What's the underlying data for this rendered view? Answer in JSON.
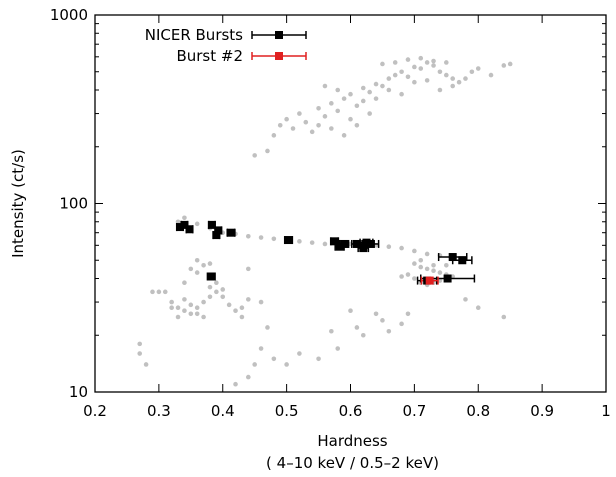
{
  "chart_data": {
    "type": "scatter",
    "title": "",
    "xlabel": "Hardness",
    "xlabel_sub": "( 4–10 keV / 0.5–2 keV)",
    "ylabel": "Intensity (ct/s)",
    "xlim": [
      0.2,
      1.0
    ],
    "ylim": [
      10,
      1000
    ],
    "yscale": "log",
    "grid": false,
    "legend_position": "top-left",
    "x_ticks": [
      0.2,
      0.3,
      0.4,
      0.5,
      0.6,
      0.7,
      0.8,
      0.9,
      1.0
    ],
    "x_tick_labels": [
      "0.2",
      "0.3",
      "0.4",
      "0.5",
      "0.6",
      "0.7",
      "0.8",
      "0.9",
      "1"
    ],
    "y_ticks": [
      10,
      100,
      1000
    ],
    "y_tick_labels": [
      "10",
      "100",
      "1000"
    ],
    "colors": {
      "background": "#c0c0c0",
      "nicer": "#000000",
      "burst2": "#e02020"
    },
    "series": [
      {
        "name": "",
        "role": "background",
        "points": [
          [
            0.45,
            180
          ],
          [
            0.47,
            190
          ],
          [
            0.48,
            230
          ],
          [
            0.49,
            260
          ],
          [
            0.5,
            280
          ],
          [
            0.51,
            250
          ],
          [
            0.52,
            300
          ],
          [
            0.53,
            270
          ],
          [
            0.54,
            240
          ],
          [
            0.55,
            320
          ],
          [
            0.56,
            290
          ],
          [
            0.57,
            340
          ],
          [
            0.58,
            310
          ],
          [
            0.59,
            360
          ],
          [
            0.6,
            380
          ],
          [
            0.61,
            330
          ],
          [
            0.62,
            410
          ],
          [
            0.63,
            390
          ],
          [
            0.64,
            430
          ],
          [
            0.65,
            420
          ],
          [
            0.66,
            460
          ],
          [
            0.67,
            480
          ],
          [
            0.68,
            500
          ],
          [
            0.69,
            470
          ],
          [
            0.7,
            530
          ],
          [
            0.71,
            520
          ],
          [
            0.72,
            560
          ],
          [
            0.73,
            540
          ],
          [
            0.74,
            500
          ],
          [
            0.75,
            480
          ],
          [
            0.76,
            460
          ],
          [
            0.77,
            440
          ],
          [
            0.78,
            460
          ],
          [
            0.79,
            500
          ],
          [
            0.8,
            520
          ],
          [
            0.82,
            480
          ],
          [
            0.84,
            540
          ],
          [
            0.85,
            550
          ],
          [
            0.55,
            260
          ],
          [
            0.57,
            250
          ],
          [
            0.59,
            230
          ],
          [
            0.6,
            280
          ],
          [
            0.62,
            350
          ],
          [
            0.64,
            360
          ],
          [
            0.66,
            400
          ],
          [
            0.68,
            380
          ],
          [
            0.7,
            440
          ],
          [
            0.72,
            450
          ],
          [
            0.74,
            400
          ],
          [
            0.76,
            420
          ],
          [
            0.63,
            300
          ],
          [
            0.61,
            260
          ],
          [
            0.58,
            400
          ],
          [
            0.56,
            420
          ],
          [
            0.65,
            550
          ],
          [
            0.67,
            560
          ],
          [
            0.69,
            580
          ],
          [
            0.71,
            590
          ],
          [
            0.73,
            570
          ],
          [
            0.75,
            560
          ],
          [
            0.33,
            80
          ],
          [
            0.34,
            84
          ],
          [
            0.36,
            78
          ],
          [
            0.38,
            74
          ],
          [
            0.4,
            70
          ],
          [
            0.42,
            69
          ],
          [
            0.44,
            67
          ],
          [
            0.46,
            66
          ],
          [
            0.48,
            65
          ],
          [
            0.5,
            64
          ],
          [
            0.52,
            63
          ],
          [
            0.54,
            62
          ],
          [
            0.56,
            61
          ],
          [
            0.58,
            62
          ],
          [
            0.6,
            61
          ],
          [
            0.62,
            60
          ],
          [
            0.64,
            60
          ],
          [
            0.66,
            59
          ],
          [
            0.68,
            58
          ],
          [
            0.7,
            56
          ],
          [
            0.72,
            54
          ],
          [
            0.74,
            53
          ],
          [
            0.76,
            52
          ],
          [
            0.7,
            48
          ],
          [
            0.71,
            46
          ],
          [
            0.72,
            45
          ],
          [
            0.73,
            44
          ],
          [
            0.74,
            43
          ],
          [
            0.75,
            42
          ],
          [
            0.7,
            40
          ],
          [
            0.71,
            38
          ],
          [
            0.72,
            37
          ],
          [
            0.73,
            38
          ],
          [
            0.74,
            39
          ],
          [
            0.69,
            42
          ],
          [
            0.68,
            41
          ],
          [
            0.76,
            41
          ],
          [
            0.73,
            47
          ],
          [
            0.71,
            50
          ],
          [
            0.75,
            47
          ],
          [
            0.31,
            34
          ],
          [
            0.32,
            30
          ],
          [
            0.33,
            28
          ],
          [
            0.34,
            27
          ],
          [
            0.35,
            26
          ],
          [
            0.36,
            28
          ],
          [
            0.37,
            30
          ],
          [
            0.38,
            32
          ],
          [
            0.39,
            34
          ],
          [
            0.4,
            32
          ],
          [
            0.41,
            29
          ],
          [
            0.42,
            27
          ],
          [
            0.43,
            28
          ],
          [
            0.44,
            31
          ],
          [
            0.46,
            30
          ],
          [
            0.35,
            45
          ],
          [
            0.36,
            43
          ],
          [
            0.37,
            47
          ],
          [
            0.34,
            31
          ],
          [
            0.36,
            26
          ],
          [
            0.29,
            34
          ],
          [
            0.3,
            34
          ],
          [
            0.32,
            28
          ],
          [
            0.33,
            25
          ],
          [
            0.38,
            36
          ],
          [
            0.39,
            38
          ],
          [
            0.4,
            35
          ],
          [
            0.37,
            25
          ],
          [
            0.35,
            29
          ],
          [
            0.34,
            38
          ],
          [
            0.27,
            16
          ],
          [
            0.28,
            14
          ],
          [
            0.27,
            18
          ],
          [
            0.45,
            14
          ],
          [
            0.42,
            11
          ],
          [
            0.44,
            12
          ],
          [
            0.46,
            17
          ],
          [
            0.48,
            15
          ],
          [
            0.5,
            14
          ],
          [
            0.52,
            16
          ],
          [
            0.55,
            15
          ],
          [
            0.57,
            21
          ],
          [
            0.58,
            17
          ],
          [
            0.6,
            27
          ],
          [
            0.61,
            22
          ],
          [
            0.62,
            20
          ],
          [
            0.64,
            26
          ],
          [
            0.65,
            24
          ],
          [
            0.66,
            21
          ],
          [
            0.68,
            23
          ],
          [
            0.69,
            26
          ],
          [
            0.8,
            28
          ],
          [
            0.84,
            25
          ],
          [
            0.78,
            31
          ],
          [
            0.44,
            45
          ],
          [
            0.36,
            50
          ],
          [
            0.38,
            48
          ],
          [
            0.47,
            22
          ],
          [
            0.43,
            25
          ]
        ]
      },
      {
        "name": "NICER Bursts",
        "role": "highlight",
        "points": [
          {
            "x": 0.333,
            "y": 75,
            "xerr": 0.005
          },
          {
            "x": 0.34,
            "y": 77,
            "xerr": 0.005
          },
          {
            "x": 0.348,
            "y": 73,
            "xerr": 0.005
          },
          {
            "x": 0.383,
            "y": 77,
            "xerr": 0.005
          },
          {
            "x": 0.39,
            "y": 68,
            "xerr": 0.005
          },
          {
            "x": 0.393,
            "y": 72,
            "xerr": 0.005
          },
          {
            "x": 0.413,
            "y": 70,
            "xerr": 0.006
          },
          {
            "x": 0.503,
            "y": 64,
            "xerr": 0.006
          },
          {
            "x": 0.575,
            "y": 63,
            "xerr": 0.006
          },
          {
            "x": 0.583,
            "y": 59,
            "xerr": 0.007
          },
          {
            "x": 0.59,
            "y": 61,
            "xerr": 0.007
          },
          {
            "x": 0.61,
            "y": 61,
            "xerr": 0.008
          },
          {
            "x": 0.62,
            "y": 58,
            "xerr": 0.008
          },
          {
            "x": 0.625,
            "y": 62,
            "xerr": 0.01
          },
          {
            "x": 0.632,
            "y": 61,
            "xerr": 0.012
          },
          {
            "x": 0.382,
            "y": 41,
            "xerr": 0.006
          },
          {
            "x": 0.76,
            "y": 52,
            "xerr": 0.022
          },
          {
            "x": 0.775,
            "y": 50,
            "xerr": 0.015
          },
          {
            "x": 0.752,
            "y": 40,
            "xerr": 0.042
          },
          {
            "x": 0.72,
            "y": 39,
            "xerr": 0.015
          }
        ]
      },
      {
        "name": "Burst #2",
        "role": "burst2",
        "points": [
          {
            "x": 0.724,
            "y": 39,
            "xerr": 0.013
          }
        ]
      }
    ]
  }
}
